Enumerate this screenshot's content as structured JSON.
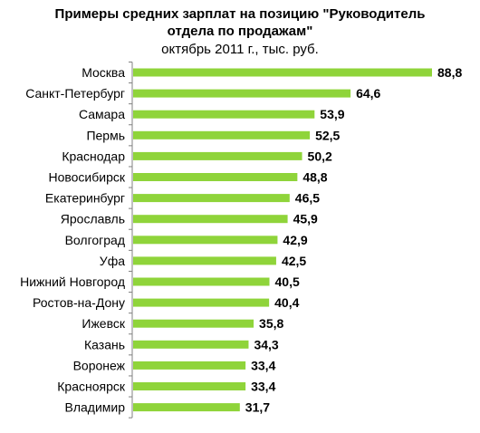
{
  "chart_data": {
    "type": "bar",
    "orientation": "horizontal",
    "title": "Примеры средних зарплат на позицию \"Руководитель отдела по продажам\"",
    "title_lines": [
      "Примеры средних зарплат на позицию \"Руководитель",
      "отдела по продажам\""
    ],
    "subtitle": "октябрь 2011 г., тыс. руб.",
    "categories": [
      "Москва",
      "Санкт-Петербург",
      "Самара",
      "Пермь",
      "Краснодар",
      "Новосибирск",
      "Екатеринбург",
      "Ярославль",
      "Волгоград",
      "Уфа",
      "Нижний Новгород",
      "Ростов-на-Дону",
      "Ижевск",
      "Казань",
      "Воронеж",
      "Красноярск",
      "Владимир"
    ],
    "values": [
      88.8,
      64.6,
      53.9,
      52.5,
      50.2,
      48.8,
      46.5,
      45.9,
      42.9,
      42.5,
      40.5,
      40.4,
      35.8,
      34.3,
      33.4,
      33.4,
      31.7
    ],
    "value_labels": [
      "88,8",
      "64,6",
      "53,9",
      "52,5",
      "50,2",
      "48,8",
      "46,5",
      "45,9",
      "42,9",
      "42,5",
      "40,5",
      "40,4",
      "35,8",
      "34,3",
      "33,4",
      "33,4",
      "31,7"
    ],
    "xlim": [
      0,
      88.8
    ],
    "grid": false,
    "legend": "none",
    "bar_color": "#8fd43a",
    "axis_color": "#808080"
  }
}
